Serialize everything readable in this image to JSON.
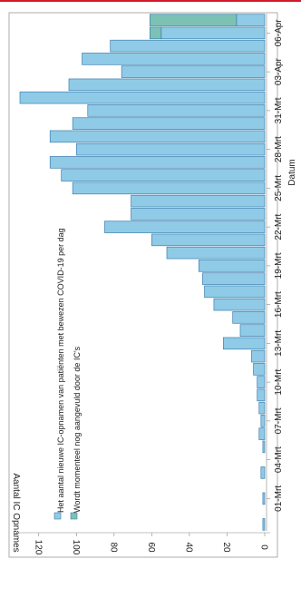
{
  "chart_data": {
    "type": "bar",
    "orientation": "rotated-90-clockwise",
    "xlabel": "Datum",
    "ylabel": "Aantal IC Opnames",
    "ylim": [
      0,
      130
    ],
    "yticks": [
      0,
      20,
      40,
      60,
      80,
      100,
      120
    ],
    "xtick_labels": [
      "01-Mrt",
      "04-Mrt",
      "07-Mrt",
      "10-Mrt",
      "13-Mrt",
      "16-Mrt",
      "19-Mrt",
      "22-Mrt",
      "25-Mrt",
      "28-Mrt",
      "31-Mrt",
      "03-Apr",
      "06-Apr"
    ],
    "grid": false,
    "legend_position": "top-left",
    "categories": [
      "28-Feb",
      "29-Feb",
      "01-Mrt",
      "02-Mrt",
      "03-Mrt",
      "04-Mrt",
      "05-Mrt",
      "06-Mrt",
      "07-Mrt",
      "08-Mrt",
      "09-Mrt",
      "10-Mrt",
      "11-Mrt",
      "12-Mrt",
      "13-Mrt",
      "14-Mrt",
      "15-Mrt",
      "16-Mrt",
      "17-Mrt",
      "18-Mrt",
      "19-Mrt",
      "20-Mrt",
      "21-Mrt",
      "22-Mrt",
      "23-Mrt",
      "24-Mrt",
      "25-Mrt",
      "26-Mrt",
      "27-Mrt",
      "28-Mrt",
      "29-Mrt",
      "30-Mrt",
      "31-Mrt",
      "01-Apr",
      "02-Apr",
      "03-Apr",
      "04-Apr",
      "05-Apr",
      "06-Apr",
      "07-Apr"
    ],
    "series": [
      {
        "name": "Het aantal nieuwe IC-opnamen van patiënten met bewezen COVID-19 per dag",
        "color": "#8fcbe6",
        "values": [
          1,
          0,
          1,
          0,
          2,
          0,
          1,
          3,
          2,
          3,
          4,
          4,
          6,
          7,
          22,
          13,
          17,
          27,
          32,
          33,
          35,
          52,
          60,
          85,
          71,
          71,
          102,
          108,
          114,
          100,
          114,
          102,
          94,
          130,
          104,
          76,
          97,
          82,
          55,
          15
        ]
      },
      {
        "name": "Wordt momenteel nog aangevuld door de IC's",
        "color": "#7cc2b4",
        "values": [
          0,
          0,
          0,
          0,
          0,
          0,
          0,
          0,
          0,
          0,
          0,
          0,
          0,
          0,
          0,
          0,
          0,
          0,
          0,
          0,
          0,
          0,
          0,
          0,
          0,
          0,
          0,
          0,
          0,
          0,
          0,
          0,
          0,
          0,
          0,
          0,
          0,
          0,
          6,
          46
        ]
      }
    ]
  }
}
